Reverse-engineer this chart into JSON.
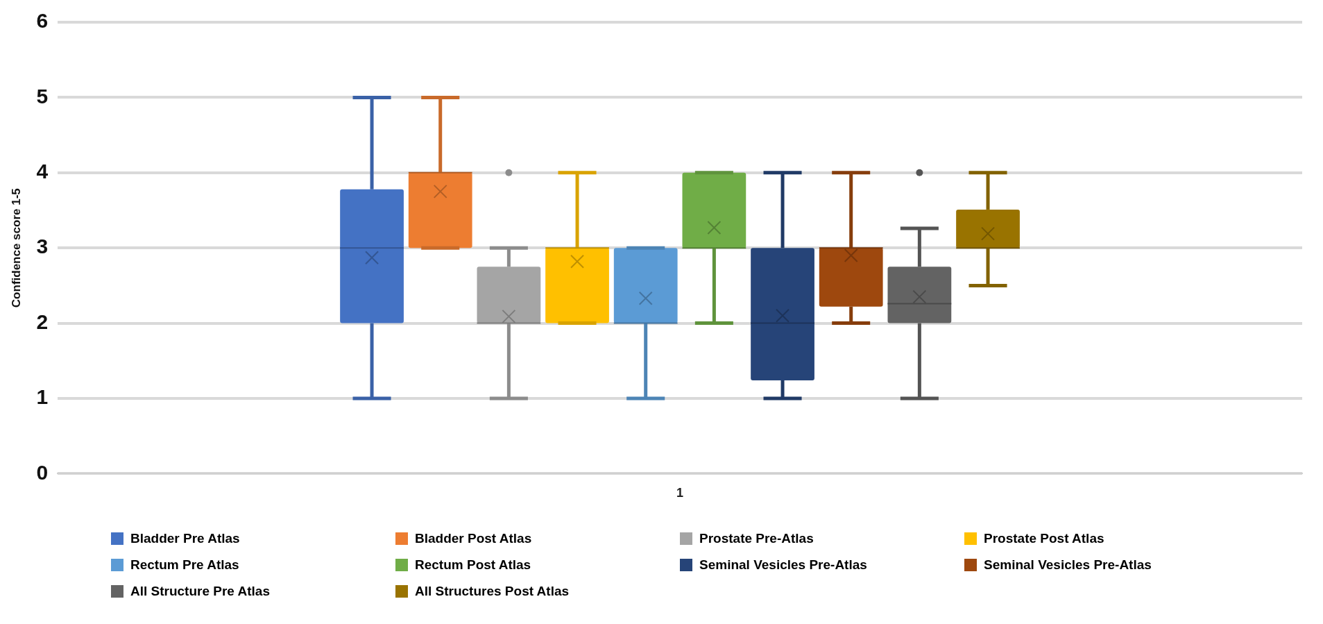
{
  "chart_data": {
    "type": "box",
    "ylabel": "Confidence score 1-5",
    "categories": [
      "1"
    ],
    "ylim": [
      0,
      6
    ],
    "yticks": [
      0,
      1,
      2,
      3,
      4,
      5,
      6
    ],
    "grid": "y",
    "legend": "bottom",
    "series": [
      {
        "name": "Bladder Pre Atlas",
        "color": "#4472c4",
        "boxes": [
          {
            "low": 1,
            "q1": 2,
            "median": 3,
            "q3": 3.78,
            "high": 5,
            "mean": 2.87
          }
        ]
      },
      {
        "name": "Bladder Post Atlas",
        "color": "#ed7d31",
        "boxes": [
          {
            "low": 3,
            "q1": 3,
            "median": 4,
            "q3": 4,
            "high": 5,
            "mean": 3.75
          }
        ]
      },
      {
        "name": "Prostate Pre-Atlas",
        "color": "#a5a5a5",
        "boxes": [
          {
            "low": 1,
            "q1": 2,
            "median": 2,
            "q3": 2.75,
            "high": 3,
            "mean": 2.09,
            "outliers": [
              4
            ]
          }
        ]
      },
      {
        "name": "Prostate Post Atlas",
        "color": "#ffc000",
        "boxes": [
          {
            "low": 2,
            "q1": 2,
            "median": 3,
            "q3": 3,
            "high": 4,
            "mean": 2.82
          }
        ]
      },
      {
        "name": "Rectum Pre Atlas",
        "color": "#5b9bd5",
        "boxes": [
          {
            "low": 1,
            "q1": 2,
            "median": 2,
            "q3": 3,
            "high": 3,
            "mean": 2.33
          }
        ]
      },
      {
        "name": "Rectum Post Atlas",
        "color": "#70ad47",
        "boxes": [
          {
            "low": 2,
            "q1": 3,
            "median": 3,
            "q3": 4,
            "high": 4,
            "mean": 3.27
          }
        ]
      },
      {
        "name": "Seminal Vesicles Pre-Atlas",
        "color": "#264478",
        "boxes": [
          {
            "low": 1,
            "q1": 1.24,
            "median": 2,
            "q3": 3,
            "high": 4,
            "mean": 2.1
          }
        ]
      },
      {
        "name": "Seminal Vesicles Pre-Atlas",
        "color": "#9e480e",
        "boxes": [
          {
            "low": 2,
            "q1": 2.22,
            "median": 3,
            "q3": 3,
            "high": 4,
            "mean": 2.9
          }
        ]
      },
      {
        "name": "All Structure Pre Atlas",
        "color": "#636363",
        "boxes": [
          {
            "low": 1,
            "q1": 2,
            "median": 2.26,
            "q3": 2.75,
            "high": 3.26,
            "mean": 2.35,
            "outliers": [
              4
            ]
          }
        ]
      },
      {
        "name": "All Structures Post Atlas",
        "color": "#997300",
        "boxes": [
          {
            "low": 2.5,
            "q1": 3,
            "median": 3,
            "q3": 3.51,
            "high": 4,
            "mean": 3.19
          }
        ]
      }
    ]
  }
}
